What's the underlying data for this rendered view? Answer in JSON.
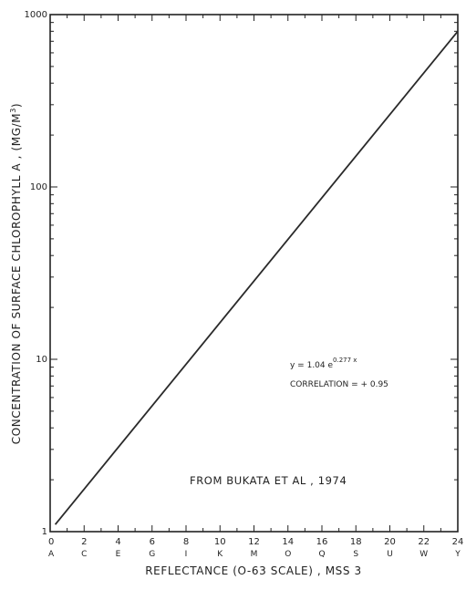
{
  "chart_data": {
    "type": "line",
    "title": "",
    "xlabel": "REFLECTANCE (O-63 SCALE) , MSS 3",
    "ylabel": "CONCENTRATION OF SURFACE CHLOROPHYLL A , (MG/M",
    "ylabel_superscript": "3",
    "ylabel_suffix": ")",
    "xlim": [
      0,
      24
    ],
    "ylim": [
      1,
      1000
    ],
    "yscale": "log",
    "x_ticks": [
      0,
      2,
      4,
      6,
      8,
      10,
      12,
      14,
      16,
      18,
      20,
      22,
      24
    ],
    "x_tick_labels": [
      "0",
      "2",
      "4",
      "6",
      "8",
      "10",
      "12",
      "14",
      "16",
      "18",
      "20",
      "22",
      "24"
    ],
    "x_letter_labels": [
      "A",
      "C",
      "E",
      "G",
      "I",
      "K",
      "M",
      "O",
      "Q",
      "S",
      "U",
      "W",
      "Y"
    ],
    "y_tick_labels": [
      "1",
      "10",
      "100",
      "1000"
    ],
    "series": [
      {
        "x": [
          0.3,
          24
        ],
        "y": [
          1.1,
          800
        ]
      }
    ],
    "annotations": {
      "equation_prefix": "y = 1.04 e",
      "equation_exponent": "0.277 x",
      "correlation": "CORRELATION  =  + 0.95",
      "source": "FROM   BUKATA    ET   AL ,  1974"
    },
    "line_color": "#2a2a2a"
  }
}
